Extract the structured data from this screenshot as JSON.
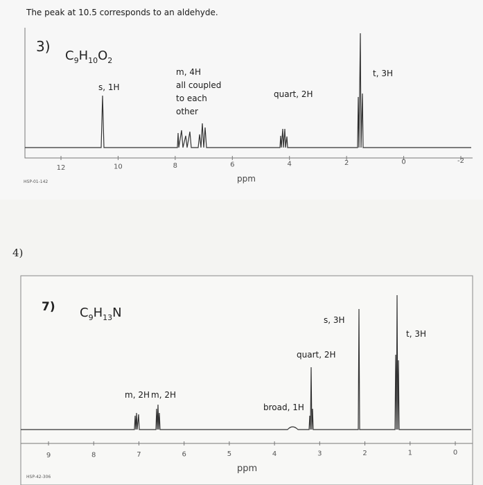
{
  "note": "The peak at 10.5 corresponds to an aldehyde.",
  "spectrum_a": {
    "number": "3)",
    "formula": [
      "C",
      "9",
      "H",
      "10",
      "O",
      "2"
    ],
    "labels": [
      "s, 1H",
      "m, 4H",
      "all coupled",
      "to each",
      "other",
      "quart, 2H",
      "t, 3H"
    ],
    "ticks": [
      "12",
      "10",
      "8",
      "6",
      "4",
      "2",
      "0",
      "-2"
    ],
    "code": "HSP-01-142",
    "axis_label": "ppm"
  },
  "question": "4)",
  "spectrum_b": {
    "number": "7)",
    "formula": [
      "C",
      "9",
      "H",
      "13",
      "N"
    ],
    "labels": [
      "s, 3H",
      "t, 3H",
      "quart, 2H",
      "m, 2H",
      "m, 2H",
      "broad, 1H"
    ],
    "ticks": [
      "9",
      "8",
      "7",
      "6",
      "5",
      "4",
      "3",
      "2",
      "1",
      "0"
    ],
    "code": "HSP-42-306",
    "axis_label": "ppm"
  }
}
